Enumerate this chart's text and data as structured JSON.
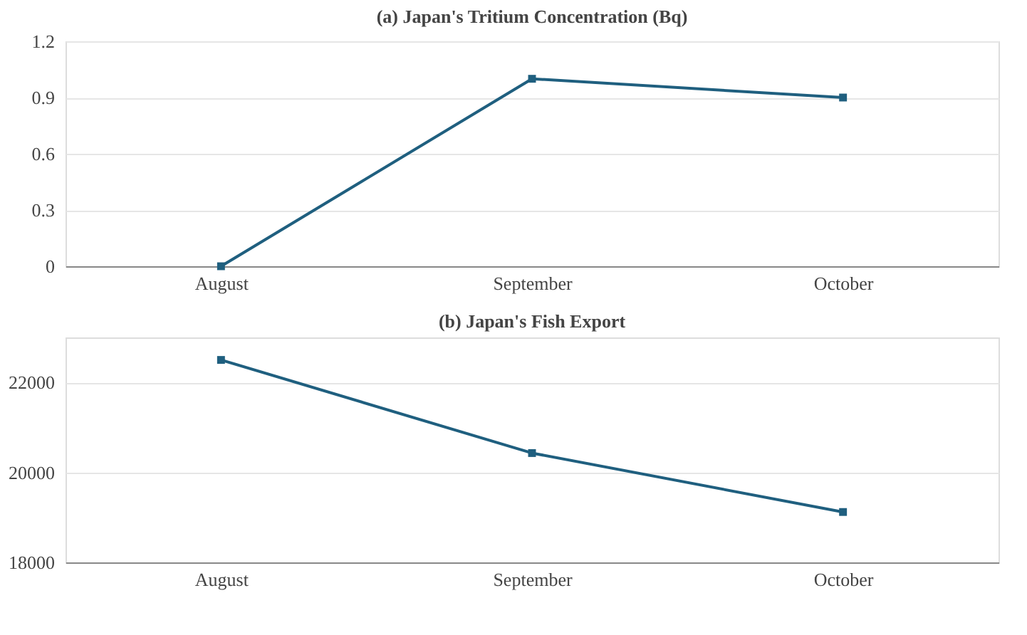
{
  "chart_data": [
    {
      "type": "line",
      "title": "(a) Japan's  Tritium Concentration (Bq)",
      "categories": [
        "August",
        "September",
        "October"
      ],
      "series": [
        {
          "color": "#1f5f7f",
          "values": [
            0,
            1.0,
            0.9
          ]
        }
      ],
      "ylim": [
        0,
        1.2
      ],
      "yticks": [
        0,
        0.3,
        0.6,
        0.9,
        1.2
      ],
      "grid": "y",
      "marker": "square",
      "line_style": "solid"
    },
    {
      "type": "line",
      "title": "(b) Japan's Fish Export",
      "categories": [
        "August",
        "September",
        "October"
      ],
      "series": [
        {
          "color": "#1f5f7f",
          "values": [
            22500,
            20430,
            19120
          ]
        }
      ],
      "ylim": [
        18000,
        23000
      ],
      "yticks": [
        18000,
        20000,
        22000
      ],
      "grid": "y",
      "marker": "square",
      "line_style": "solid"
    }
  ]
}
